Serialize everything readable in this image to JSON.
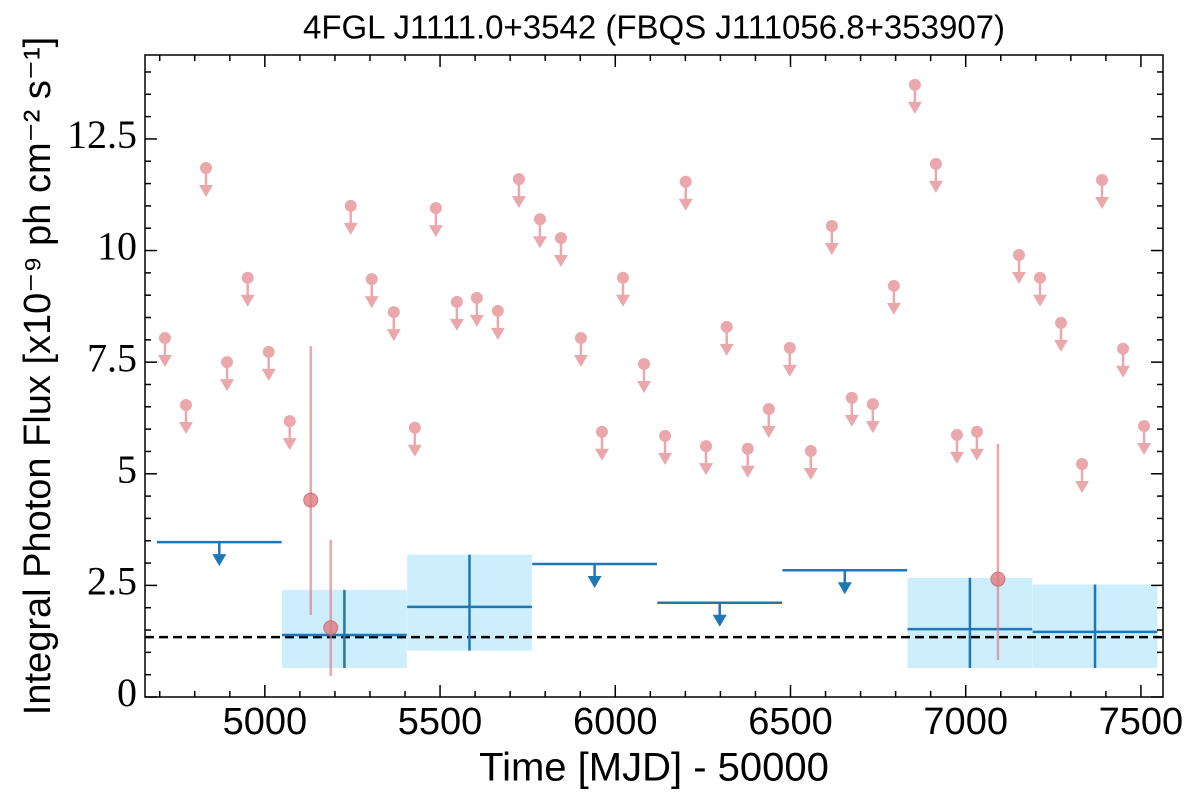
{
  "chart_data": {
    "type": "lightcurve",
    "title": "4FGL J1111.0+3542 (FBQS J111056.8+353907)",
    "x_label": "Time [MJD] - 50000",
    "y_label": "Integral Photon Flux [x10⁻⁹ ph cm⁻² s⁻¹]",
    "xlim": [
      4658,
      7563
    ],
    "ylim": [
      0,
      14.38
    ],
    "xticks": [
      5000,
      5500,
      6000,
      6500,
      7000,
      7500
    ],
    "yticks": [
      0,
      2.5,
      5,
      7.5,
      10,
      12.5
    ],
    "xminorticks": [
      4700,
      4800,
      4900,
      5100,
      5200,
      5300,
      5400,
      5600,
      5700,
      5800,
      5900,
      6100,
      6200,
      6300,
      6400,
      6600,
      6700,
      6800,
      6900,
      7100,
      7200,
      7300,
      7400
    ],
    "yminorticks": [
      0.5,
      1,
      1.5,
      2,
      3,
      3.5,
      4,
      4.5,
      5.5,
      6,
      6.5,
      7,
      8,
      8.5,
      9,
      9.5,
      10.5,
      11,
      11.5,
      12,
      13,
      13.5,
      14
    ],
    "point_color": "#e07b80",
    "bin_color": "#1f77b4",
    "bin_fill": "#cdeefc",
    "upper_limits": {
      "x": [
        4715,
        4775,
        4832,
        4892,
        4951,
        5011,
        5071,
        5245,
        5305,
        5368,
        5428,
        5488,
        5548,
        5605,
        5665,
        5725,
        5785,
        5845,
        5902,
        5962,
        6022,
        6082,
        6142,
        6201,
        6259,
        6318,
        6378,
        6438,
        6498,
        6558,
        6618,
        6675,
        6735,
        6795,
        6855,
        6915,
        6975,
        7032,
        7152,
        7212,
        7272,
        7332,
        7389,
        7449,
        7509
      ],
      "values": [
        8.04,
        6.54,
        11.85,
        7.5,
        9.39,
        7.73,
        6.18,
        11.0,
        9.36,
        8.62,
        6.03,
        10.95,
        8.85,
        8.94,
        8.65,
        11.6,
        10.7,
        10.28,
        8.04,
        5.94,
        9.39,
        7.46,
        5.85,
        11.54,
        5.62,
        8.29,
        5.56,
        6.45,
        7.82,
        5.51,
        10.55,
        6.7,
        6.56,
        9.21,
        13.71,
        11.94,
        5.87,
        5.94,
        9.9,
        9.39,
        8.38,
        5.22,
        11.58,
        7.8,
        6.07
      ]
    },
    "detections": {
      "x": [
        5131,
        5188,
        7092
      ],
      "values": [
        4.41,
        1.55,
        2.64
      ],
      "err_low": [
        2.57,
        1.08,
        1.81
      ],
      "err_high": [
        3.45,
        1.97,
        3.03
      ]
    },
    "bin_halfwidth": 178,
    "binned_upper_limits": {
      "x": [
        4870,
        5941,
        6298,
        6655
      ],
      "values": [
        3.47,
        2.98,
        2.11,
        2.84
      ]
    },
    "binned_detections": {
      "x": [
        5227,
        5584,
        7012,
        7369
      ],
      "values": [
        1.39,
        2.02,
        1.52,
        1.46
      ],
      "err_low": [
        0.74,
        0.98,
        0.87,
        0.81
      ],
      "err_high": [
        1.01,
        1.17,
        1.15,
        1.06
      ]
    },
    "reference_level": 1.34
  }
}
